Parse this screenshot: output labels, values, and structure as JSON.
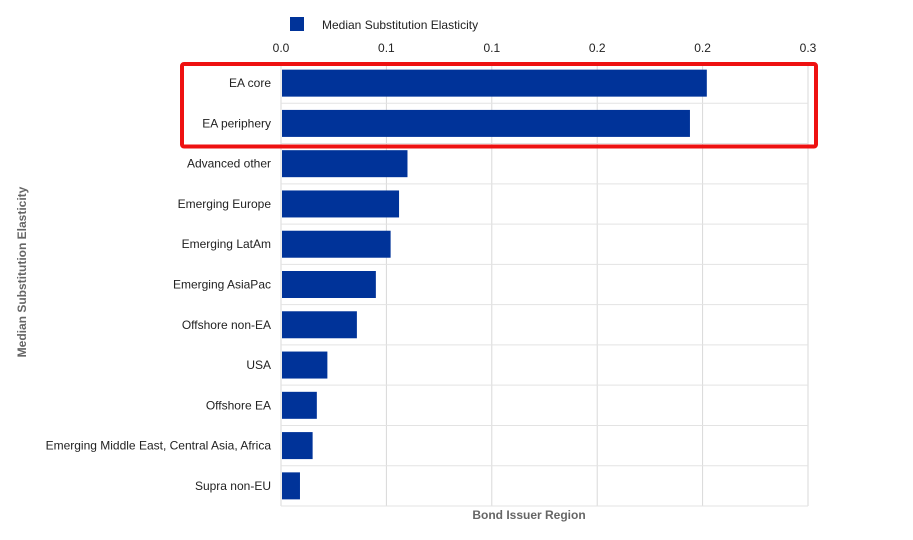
{
  "chart_data": {
    "type": "bar",
    "orientation": "horizontal",
    "categories": [
      "EA core",
      "EA periphery",
      "Advanced other",
      "Emerging Europe",
      "Emerging LatAm",
      "Emerging AsiaPac",
      "Offshore non-EA",
      "USA",
      "Offshore EA",
      "Emerging Middle East, Central Asia, Africa",
      "Supra non-EU"
    ],
    "series": [
      {
        "name": "Median Substitution Elasticity",
        "color": "#003399",
        "values": [
          0.202,
          0.194,
          0.06,
          0.056,
          0.052,
          0.045,
          0.036,
          0.022,
          0.017,
          0.015,
          0.009
        ]
      }
    ],
    "xlim": [
      0,
      0.25
    ],
    "xticks": [
      0,
      0.05,
      0.1,
      0.15,
      0.2,
      0.25
    ],
    "xtick_labels": [
      "0.0",
      "0.1",
      "0.1",
      "0.2",
      "0.2",
      "0.3"
    ],
    "xlabel": "Bond Issuer Region",
    "ylabel": "Median Substitution Elasticity",
    "legend": {
      "position": "top-left",
      "label": "Median Substitution Elasticity"
    },
    "grid": true,
    "highlight": {
      "categories": [
        "EA core",
        "EA periphery"
      ],
      "color": "#ee1111"
    }
  }
}
